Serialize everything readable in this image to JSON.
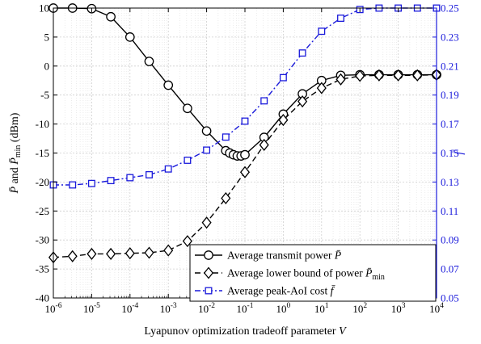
{
  "chart_data": {
    "type": "line",
    "xlabel": "Lyapunov optimization tradeoff parameter V",
    "ylabel_left": "P̄ and P̄_min (dBm)",
    "ylabel_right": "f̄",
    "x_scale": "log",
    "xlim": [
      1e-06,
      10000
    ],
    "ylim_left": [
      -40,
      10
    ],
    "ylim_right": [
      0.05,
      0.25
    ],
    "grid": true,
    "legend_position": "bottom-right",
    "x_tick_labels": [
      "10-6",
      "10-5",
      "10-4",
      "10-3",
      "10-2",
      "10-1",
      "100",
      "101",
      "102",
      "103",
      "104"
    ],
    "y_left_ticks": [
      10,
      5,
      0,
      -5,
      -10,
      -15,
      -20,
      -25,
      -30,
      -35,
      -40
    ],
    "y_right_ticks": [
      0.25,
      0.23,
      0.21,
      0.19,
      0.17,
      0.15,
      0.13,
      0.11,
      0.09,
      0.07,
      0.05
    ],
    "series": [
      {
        "name": "Average transmit power P̄",
        "legend_main": "Average transmit power ",
        "legend_sym": "P̄",
        "legend_sub": "",
        "axis": "left",
        "color": "#000000",
        "marker": "circle",
        "line_style": "solid",
        "x": [
          1e-06,
          3.1623e-06,
          1e-05,
          3.1623e-05,
          0.0001,
          0.00031623,
          0.001,
          0.0031623,
          0.01,
          0.031623,
          0.04,
          0.05,
          0.063096,
          0.079433,
          0.1,
          0.31623,
          1,
          3.1623,
          10,
          31.623,
          100,
          316.23,
          1000,
          3162.3,
          10000
        ],
        "y": [
          10,
          10,
          9.9,
          8.5,
          5,
          0.8,
          -3.3,
          -7.3,
          -11.2,
          -14.6,
          -15,
          -15.3,
          -15.5,
          -15.5,
          -15.3,
          -12.3,
          -8.3,
          -4.8,
          -2.5,
          -1.6,
          -1.5,
          -1.5,
          -1.5,
          -1.5,
          -1.5
        ]
      },
      {
        "name": "Average lower bound of power P̄min",
        "legend_main": "Average lower bound of power ",
        "legend_sym": "P̄",
        "legend_sub": "min",
        "axis": "left",
        "color": "#000000",
        "marker": "diamond",
        "line_style": "dashed",
        "x": [
          1e-06,
          3.1623e-06,
          1e-05,
          3.1623e-05,
          0.0001,
          0.00031623,
          0.001,
          0.0031623,
          0.01,
          0.031623,
          0.1,
          0.31623,
          1,
          3.1623,
          10,
          31.623,
          100,
          316.23,
          1000,
          3162.3,
          10000
        ],
        "y": [
          -33,
          -32.8,
          -32.4,
          -32.4,
          -32.3,
          -32.2,
          -31.8,
          -30.2,
          -27,
          -22.8,
          -18.3,
          -13.6,
          -9.3,
          -6.1,
          -3.8,
          -2.3,
          -1.7,
          -1.6,
          -1.6,
          -1.6,
          -1.5
        ]
      },
      {
        "name": "Average peak-AoI cost f̄",
        "legend_main": "Average peak-AoI cost ",
        "legend_sym": "f̄",
        "legend_sub": "",
        "axis": "right",
        "color": "#1a1adb",
        "marker": "square",
        "line_style": "dashdot",
        "x": [
          1e-06,
          3.1623e-06,
          1e-05,
          3.1623e-05,
          0.0001,
          0.00031623,
          0.001,
          0.0031623,
          0.01,
          0.031623,
          0.1,
          0.31623,
          1,
          3.1623,
          10,
          31.623,
          100,
          316.23,
          1000,
          3162.3,
          10000
        ],
        "y": [
          0.128,
          0.128,
          0.129,
          0.131,
          0.133,
          0.135,
          0.139,
          0.145,
          0.152,
          0.161,
          0.172,
          0.186,
          0.202,
          0.219,
          0.234,
          0.243,
          0.249,
          0.25,
          0.25,
          0.25,
          0.25
        ]
      }
    ]
  }
}
